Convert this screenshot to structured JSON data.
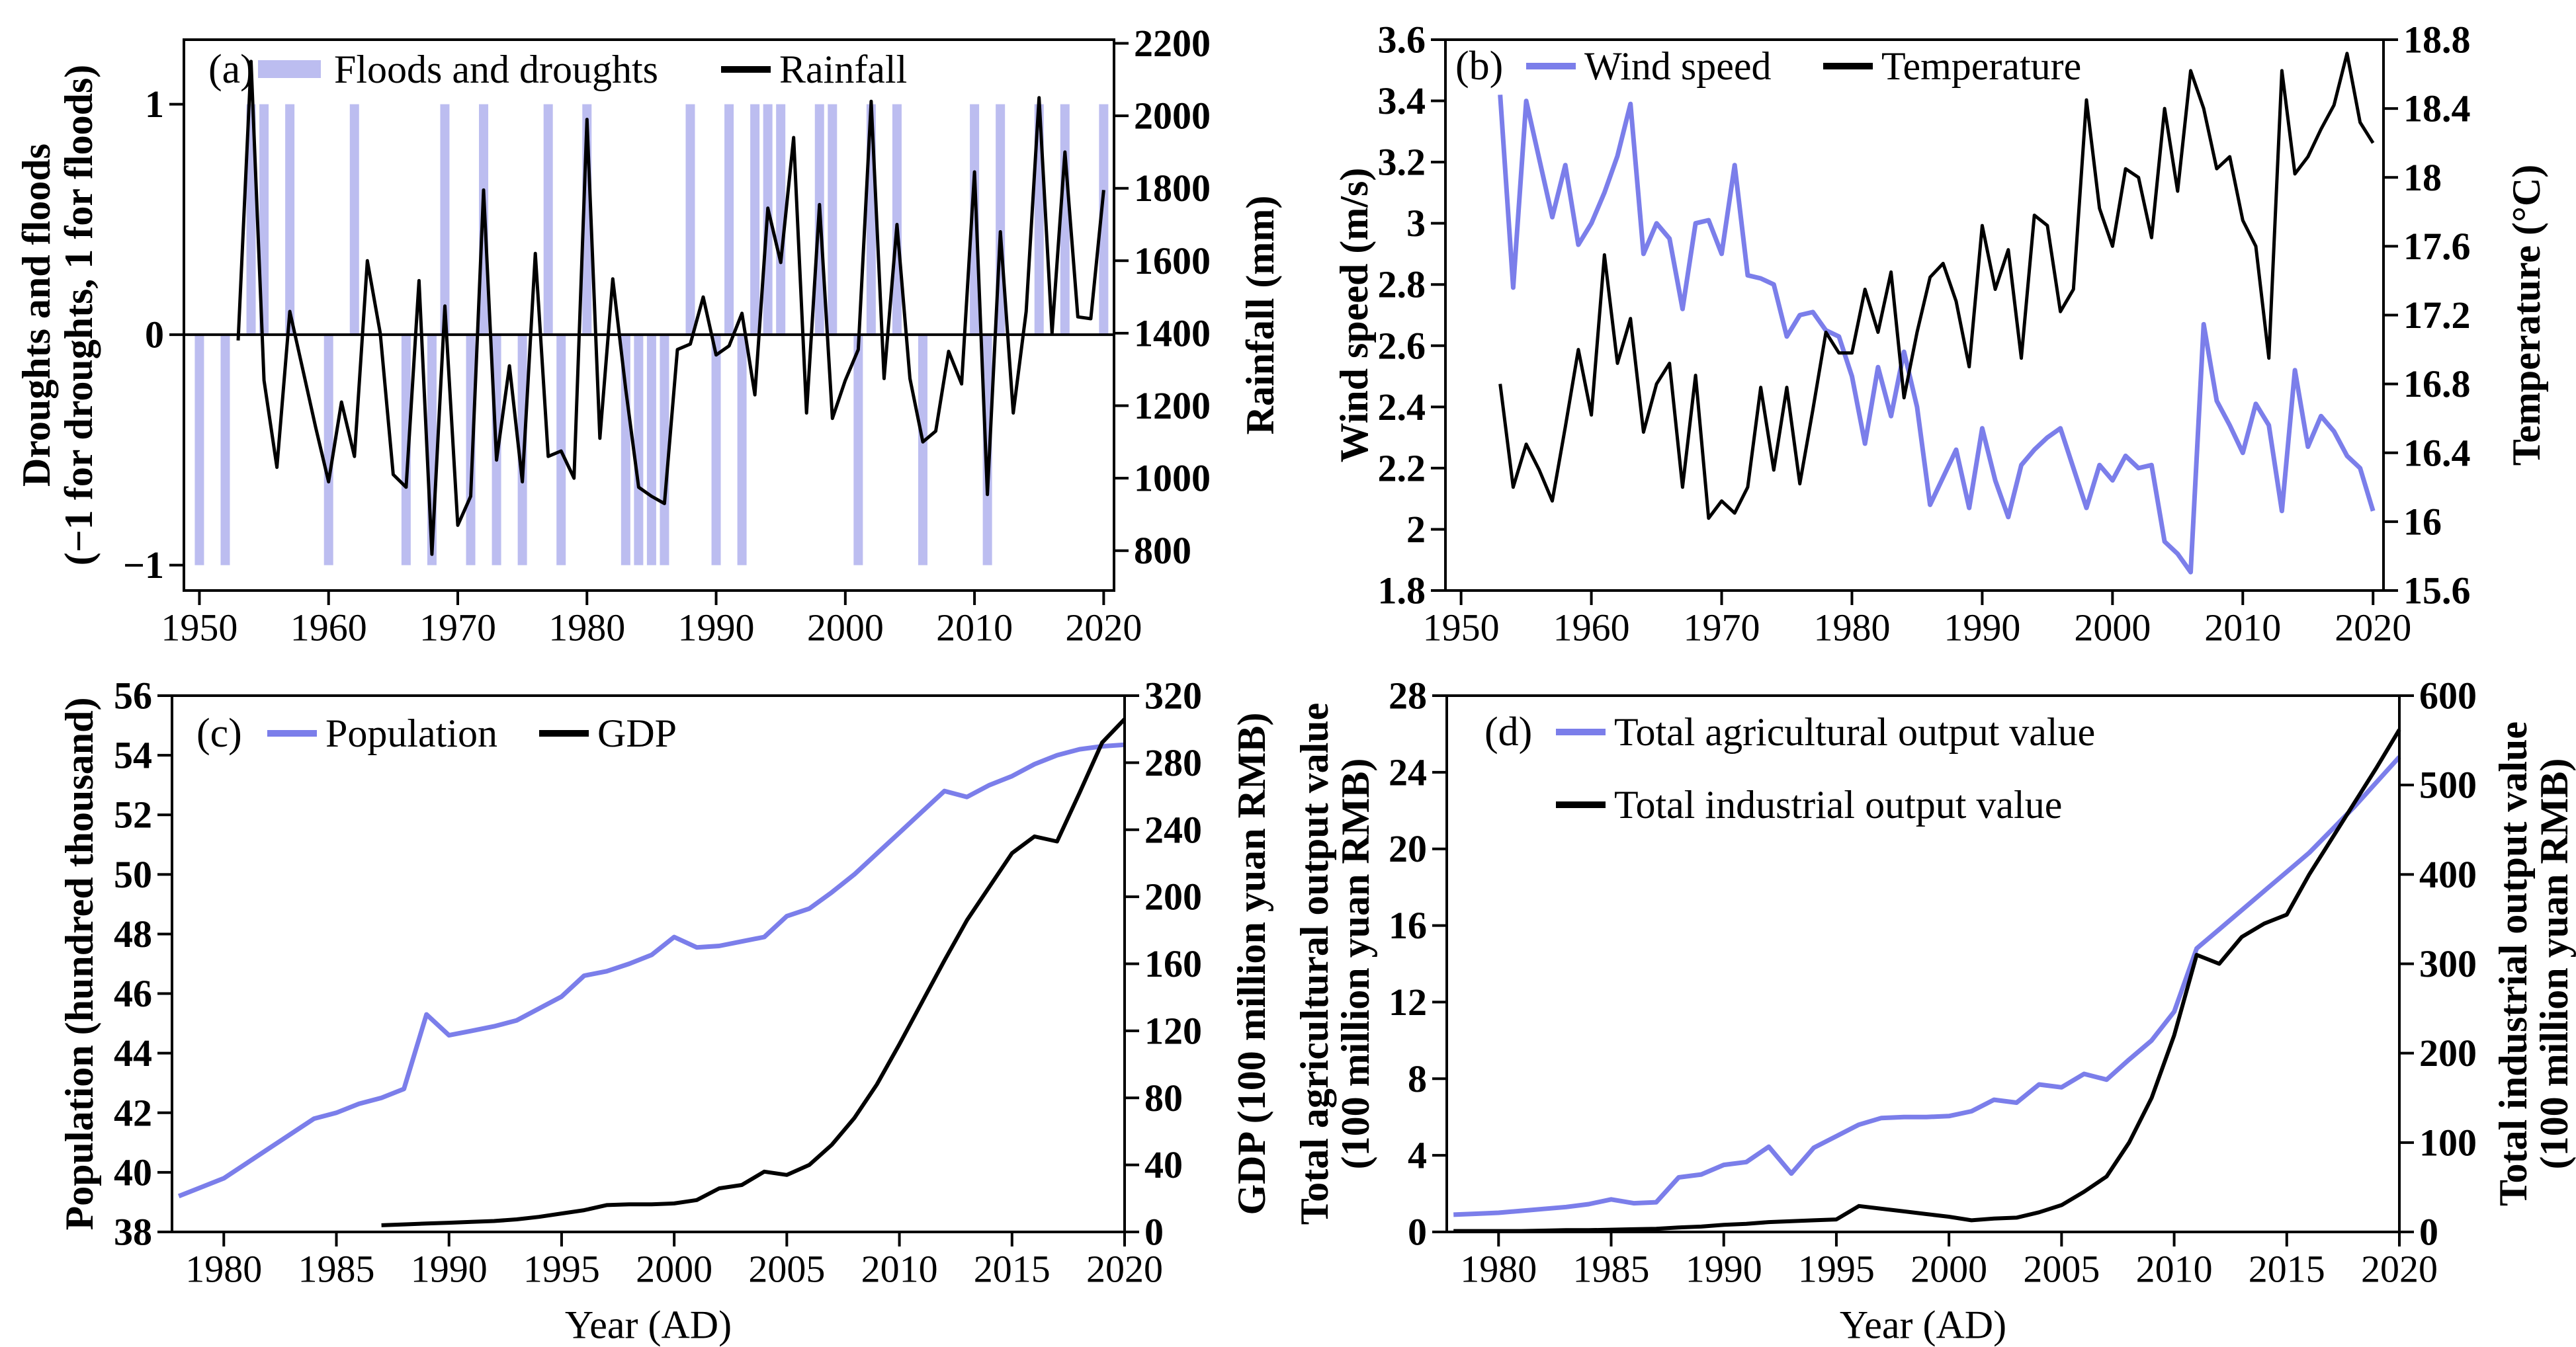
{
  "figure": {
    "background": "#ffffff"
  },
  "colors": {
    "black": "#000000",
    "periwinkle_line": "#7b7eea",
    "periwinkle_bar": "#bcbdf0"
  },
  "chart_data": [
    {
      "id": "a",
      "panel_label": "(a)",
      "type": "bar+line",
      "layout_hint": "legend top inside, twin y axes, grid off",
      "x_axis": {
        "label": "",
        "domain": [
          1948.8,
          2020.8
        ],
        "tick_values": [
          1950,
          1960,
          1970,
          1980,
          1990,
          2000,
          2010,
          2020
        ],
        "tick_labels": [
          "1950",
          "1960",
          "1970",
          "1980",
          "1990",
          "2000",
          "2010",
          "2020"
        ]
      },
      "left_axis": {
        "label_lines": [
          "Droughts and floods",
          "(−1 for droughts, 1 for floods)"
        ],
        "domain": [
          -1.11,
          1.28
        ],
        "tick_values": [
          1,
          0,
          -1
        ],
        "tick_labels": [
          "1",
          "0",
          "−1"
        ]
      },
      "right_axis": {
        "label_lines": [
          "Rainfall (mm)"
        ],
        "domain": [
          690,
          2210
        ],
        "tick_values": [
          2200,
          2000,
          1800,
          1600,
          1400,
          1200,
          1000,
          800
        ],
        "tick_labels": [
          "2200",
          "2000",
          "1800",
          "1600",
          "1400",
          "1200",
          "1000",
          "800"
        ]
      },
      "zero_line": true,
      "legend": [
        {
          "swatch": "bar",
          "color": "periwinkle_bar",
          "label": "Floods and droughts"
        },
        {
          "swatch": "line",
          "color": "black",
          "label": "Rainfall"
        }
      ],
      "series": [
        {
          "name": "floods-and-droughts-bars",
          "kind": "bars",
          "axis": "left",
          "color": "periwinkle_bar",
          "flood_value": 1,
          "drought_value": -1,
          "flood_years": [
            1954,
            1955,
            1957,
            1962,
            1969,
            1972,
            1977,
            1980,
            1988,
            1991,
            1993,
            1994,
            1995,
            1998,
            1999,
            2002,
            2004,
            2010,
            2012,
            2015,
            2017,
            2020
          ],
          "drought_years": [
            1950,
            1952,
            1960,
            1966,
            1968,
            1971,
            1973,
            1975,
            1978,
            1983,
            1984,
            1985,
            1986,
            1990,
            1992,
            2001,
            2006,
            2011
          ]
        },
        {
          "name": "rainfall-line",
          "kind": "line",
          "axis": "right",
          "color": "black",
          "stroke_width": 5,
          "x_start": 1953,
          "values": [
            1380,
            2150,
            1270,
            1030,
            1460,
            1300,
            1140,
            990,
            1210,
            1060,
            1600,
            1400,
            1010,
            975,
            1545,
            790,
            1475,
            870,
            950,
            1795,
            1050,
            1310,
            990,
            1620,
            1060,
            1075,
            1000,
            1990,
            1110,
            1550,
            1245,
            975,
            950,
            930,
            1355,
            1370,
            1500,
            1340,
            1365,
            1455,
            1230,
            1745,
            1595,
            1940,
            1180,
            1755,
            1165,
            1270,
            1355,
            2040,
            1275,
            1700,
            1275,
            1100,
            1130,
            1350,
            1260,
            1845,
            955,
            1680,
            1180,
            1460,
            2050,
            1400,
            1900,
            1445,
            1440,
            1795
          ]
        }
      ]
    },
    {
      "id": "b",
      "panel_label": "(b)",
      "type": "line",
      "layout_hint": "legend top inside, twin y axes, grid off",
      "x_axis": {
        "label": "",
        "domain": [
          1948.8,
          2020.8
        ],
        "tick_values": [
          1950,
          1960,
          1970,
          1980,
          1990,
          2000,
          2010,
          2020
        ],
        "tick_labels": [
          "1950",
          "1960",
          "1970",
          "1980",
          "1990",
          "2000",
          "2010",
          "2020"
        ]
      },
      "left_axis": {
        "label_lines": [
          "Wind speed (m/s)"
        ],
        "domain": [
          1.8,
          3.6
        ],
        "tick_values": [
          3.6,
          3.4,
          3.2,
          3.0,
          2.8,
          2.6,
          2.4,
          2.2,
          2.0,
          1.8
        ],
        "tick_labels": [
          "3.6",
          "3.4",
          "3.2",
          "3",
          "2.8",
          "2.6",
          "2.4",
          "2.2",
          "2",
          "1.8"
        ]
      },
      "right_axis": {
        "label_lines": [
          "Temperature (°C)"
        ],
        "domain": [
          15.6,
          18.8
        ],
        "tick_values": [
          18.8,
          18.4,
          18.0,
          17.6,
          17.2,
          16.8,
          16.4,
          16.0,
          15.6
        ],
        "tick_labels": [
          "18.8",
          "18.4",
          "18",
          "17.6",
          "17.2",
          "16.8",
          "16.4",
          "16",
          "15.6"
        ]
      },
      "zero_line": false,
      "legend": [
        {
          "swatch": "line",
          "color": "periwinkle_line",
          "label": "Wind speed"
        },
        {
          "swatch": "line",
          "color": "black",
          "label": "Temperature"
        }
      ],
      "series": [
        {
          "name": "wind-speed-line",
          "kind": "line",
          "axis": "left",
          "color": "periwinkle_line",
          "stroke_width": 7,
          "x_start": 1953,
          "values": [
            3.42,
            2.79,
            3.4,
            3.21,
            3.02,
            3.19,
            2.93,
            3.0,
            3.1,
            3.22,
            3.39,
            2.9,
            3.0,
            2.95,
            2.72,
            3.0,
            3.01,
            2.9,
            3.19,
            2.83,
            2.82,
            2.8,
            2.63,
            2.7,
            2.71,
            2.65,
            2.63,
            2.5,
            2.28,
            2.53,
            2.37,
            2.58,
            2.4,
            2.08,
            2.17,
            2.26,
            2.07,
            2.33,
            2.16,
            2.04,
            2.21,
            2.26,
            2.3,
            2.33,
            2.2,
            2.07,
            2.21,
            2.16,
            2.24,
            2.2,
            2.21,
            1.96,
            1.92,
            1.86,
            2.67,
            2.42,
            2.34,
            2.25,
            2.41,
            2.34,
            2.06,
            2.52,
            2.27,
            2.37,
            2.32,
            2.24,
            2.2,
            2.06
          ]
        },
        {
          "name": "temperature-line",
          "kind": "line",
          "axis": "right",
          "color": "black",
          "stroke_width": 5,
          "x_start": 1953,
          "values": [
            16.8,
            16.2,
            16.45,
            16.3,
            16.12,
            16.55,
            17.0,
            16.62,
            17.55,
            16.92,
            17.18,
            16.52,
            16.8,
            16.92,
            16.2,
            16.85,
            16.02,
            16.12,
            16.05,
            16.2,
            16.78,
            16.3,
            16.78,
            16.22,
            16.65,
            17.1,
            16.98,
            16.98,
            17.35,
            17.1,
            17.45,
            16.72,
            17.1,
            17.42,
            17.5,
            17.28,
            16.9,
            17.72,
            17.35,
            17.58,
            16.95,
            17.78,
            17.72,
            17.22,
            17.35,
            18.45,
            17.82,
            17.6,
            18.05,
            18.0,
            17.65,
            18.4,
            17.92,
            18.62,
            18.4,
            18.05,
            18.12,
            17.75,
            17.6,
            16.95,
            18.62,
            18.02,
            18.12,
            18.28,
            18.42,
            18.72,
            18.32,
            18.2
          ]
        }
      ]
    },
    {
      "id": "c",
      "panel_label": "(c)",
      "type": "line",
      "layout_hint": "legend top inside, twin y axes, grid off",
      "x_axis": {
        "label": "Year (AD)",
        "domain": [
          1977.7,
          2020
        ],
        "tick_values": [
          1980,
          1985,
          1990,
          1995,
          2000,
          2005,
          2010,
          2015,
          2020
        ],
        "tick_labels": [
          "1980",
          "1985",
          "1990",
          "1995",
          "2000",
          "2005",
          "2010",
          "2015",
          "2020"
        ]
      },
      "left_axis": {
        "label_lines": [
          "Population (hundred thousand)"
        ],
        "domain": [
          38,
          56
        ],
        "tick_values": [
          56,
          54,
          52,
          50,
          48,
          46,
          44,
          42,
          40,
          38
        ],
        "tick_labels": [
          "56",
          "54",
          "52",
          "50",
          "48",
          "46",
          "44",
          "42",
          "40",
          "38"
        ]
      },
      "right_axis": {
        "label_lines": [
          "GDP (100 million yuan RMB)"
        ],
        "domain": [
          0,
          320
        ],
        "tick_values": [
          320,
          280,
          240,
          200,
          160,
          120,
          80,
          40,
          0
        ],
        "tick_labels": [
          "320",
          "280",
          "240",
          "200",
          "160",
          "120",
          "80",
          "40",
          "0"
        ]
      },
      "zero_line": false,
      "legend": [
        {
          "swatch": "line",
          "color": "periwinkle_line",
          "label": "Population"
        },
        {
          "swatch": "line",
          "color": "black",
          "label": "GDP"
        }
      ],
      "series": [
        {
          "name": "population-line",
          "kind": "line",
          "axis": "left",
          "color": "periwinkle_line",
          "stroke_width": 7,
          "x_start": 1978,
          "values": [
            39.2,
            39.5,
            39.8,
            40.3,
            40.8,
            41.3,
            41.8,
            42.0,
            42.3,
            42.5,
            42.8,
            45.3,
            44.6,
            44.75,
            44.9,
            45.1,
            45.5,
            45.9,
            46.6,
            46.75,
            47.0,
            47.3,
            47.9,
            47.55,
            47.6,
            47.75,
            47.9,
            48.6,
            48.85,
            49.4,
            50.0,
            50.7,
            51.4,
            52.1,
            52.8,
            52.6,
            53.0,
            53.3,
            53.7,
            54.0,
            54.2,
            54.3,
            54.35
          ]
        },
        {
          "name": "gdp-line",
          "kind": "line",
          "axis": "right",
          "color": "black",
          "stroke_width": 6,
          "x_start": 1987,
          "values": [
            4,
            4.5,
            5,
            5.5,
            6,
            6.5,
            7.5,
            9,
            11,
            13,
            16,
            16.5,
            16.5,
            17,
            19,
            26,
            28,
            36,
            34,
            40,
            52,
            68,
            88,
            112,
            137,
            162,
            186,
            206,
            226,
            236,
            233,
            262,
            292,
            306
          ]
        }
      ]
    },
    {
      "id": "d",
      "panel_label": "(d)",
      "type": "line",
      "layout_hint": "legend stacked top inside, twin y axes, grid off",
      "x_axis": {
        "label": "Year (AD)",
        "domain": [
          1977.7,
          2020
        ],
        "tick_values": [
          1980,
          1985,
          1990,
          1995,
          2000,
          2005,
          2010,
          2015,
          2020
        ],
        "tick_labels": [
          "1980",
          "1985",
          "1990",
          "1995",
          "2000",
          "2005",
          "2010",
          "2015",
          "2020"
        ]
      },
      "left_axis": {
        "label_lines": [
          "Total agricultural  output value",
          "(100 million yuan RMB)"
        ],
        "domain": [
          0,
          28
        ],
        "tick_values": [
          28,
          24,
          20,
          16,
          12,
          8,
          4,
          0
        ],
        "tick_labels": [
          "28",
          "24",
          "20",
          "16",
          "12",
          "8",
          "4",
          "0"
        ]
      },
      "right_axis": {
        "label_lines": [
          "Total industrial output value",
          "(100 million yuan RMB)"
        ],
        "domain": [
          0,
          600
        ],
        "tick_values": [
          600,
          500,
          400,
          300,
          200,
          100,
          0
        ],
        "tick_labels": [
          "600",
          "500",
          "400",
          "300",
          "200",
          "100",
          "0"
        ]
      },
      "zero_line": false,
      "legend": [
        {
          "swatch": "line",
          "color": "periwinkle_line",
          "label": "Total agricultural  output value"
        },
        {
          "swatch": "line",
          "color": "black",
          "label": "Total industrial output value"
        }
      ],
      "series": [
        {
          "name": "agricultural-output-line",
          "kind": "line",
          "axis": "left",
          "color": "periwinkle_line",
          "stroke_width": 7,
          "x_start": 1978,
          "values": [
            0.9,
            0.95,
            1.0,
            1.1,
            1.2,
            1.3,
            1.45,
            1.7,
            1.5,
            1.55,
            2.85,
            3.0,
            3.5,
            3.65,
            4.45,
            3.05,
            4.4,
            5.0,
            5.6,
            5.95,
            6.0,
            6.0,
            6.05,
            6.3,
            6.9,
            6.75,
            7.7,
            7.55,
            8.25,
            7.95,
            9.0,
            10.0,
            11.5,
            14.8,
            15.8,
            16.8,
            17.8,
            18.8,
            19.8,
            21.0,
            22.2,
            23.5,
            24.8
          ]
        },
        {
          "name": "industrial-output-line",
          "kind": "line",
          "axis": "right",
          "color": "black",
          "stroke_width": 6,
          "x_start": 1978,
          "values": [
            1,
            1,
            1,
            1,
            1.5,
            2,
            2,
            2.5,
            3,
            3.5,
            5,
            6,
            8,
            9,
            11,
            12,
            13,
            14,
            29,
            26,
            23,
            20,
            17,
            13,
            15,
            16,
            22,
            30,
            45,
            62,
            100,
            150,
            220,
            310,
            300,
            330,
            345,
            355,
            400,
            440,
            480,
            520,
            562
          ]
        }
      ]
    }
  ]
}
